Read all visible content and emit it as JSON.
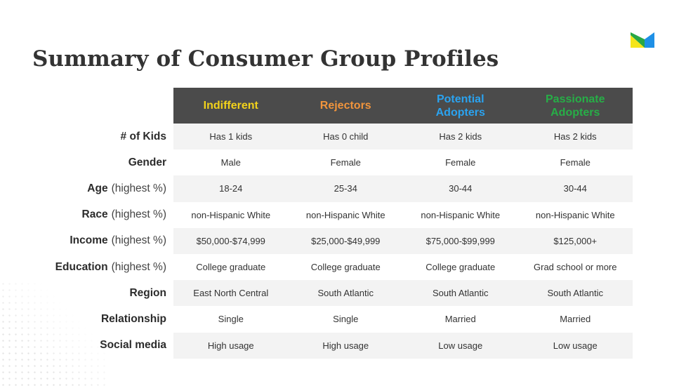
{
  "title": "Summary of Consumer Group Profiles",
  "header_colors": {
    "background": "#4b4b4b",
    "indifferent": "#f2d21b",
    "rejectors": "#f0943c",
    "potential": "#2aa3f0",
    "passionate": "#27ae47"
  },
  "logo_colors": {
    "yellow": "#f4e51a",
    "green": "#28a745",
    "blue": "#1e90e6"
  },
  "groups": [
    {
      "name": "Indifferent",
      "color": "#f2d21b"
    },
    {
      "name": "Rejectors",
      "color": "#f0943c"
    },
    {
      "name": "Potential\nAdopters",
      "color": "#2aa3f0"
    },
    {
      "name": "Passionate\nAdopters",
      "color": "#27ae47"
    }
  ],
  "rows": [
    {
      "label": "# of Kids",
      "sub": "",
      "values": [
        "Has 1 kids",
        "Has 0 child",
        "Has 2 kids",
        "Has 2 kids"
      ]
    },
    {
      "label": "Gender",
      "sub": "",
      "values": [
        "Male",
        "Female",
        "Female",
        "Female"
      ]
    },
    {
      "label": "Age",
      "sub": "(highest %)",
      "values": [
        "18-24",
        "25-34",
        "30-44",
        "30-44"
      ]
    },
    {
      "label": "Race",
      "sub": "(highest %)",
      "values": [
        "non-Hispanic White",
        "non-Hispanic White",
        "non-Hispanic White",
        "non-Hispanic White"
      ]
    },
    {
      "label": "Income",
      "sub": "(highest %)",
      "values": [
        "$50,000-$74,999",
        "$25,000-$49,999",
        "$75,000-$99,999",
        "$125,000+"
      ]
    },
    {
      "label": "Education",
      "sub": "(highest %)",
      "values": [
        "College graduate",
        "College graduate",
        "College graduate",
        "Grad school or more"
      ]
    },
    {
      "label": "Region",
      "sub": "",
      "values": [
        "East North Central",
        "South Atlantic",
        "South Atlantic",
        "South Atlantic"
      ]
    },
    {
      "label": "Relationship",
      "sub": "",
      "values": [
        "Single",
        "Single",
        "Married",
        "Married"
      ]
    },
    {
      "label": "Social media",
      "sub": "",
      "values": [
        "High usage",
        "High usage",
        "Low usage",
        "Low usage"
      ]
    }
  ]
}
